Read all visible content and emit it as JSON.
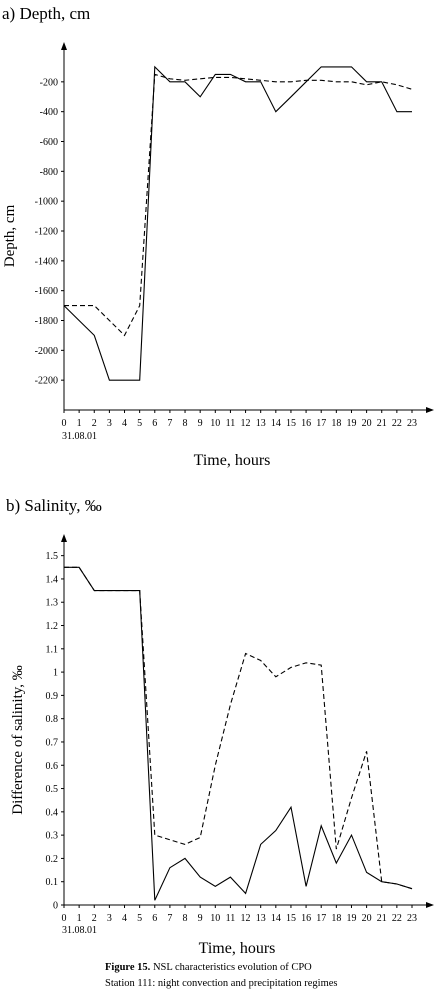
{
  "chart_data": [
    {
      "type": "line",
      "title": "a) Depth, cm",
      "xlabel": "Time, hours",
      "ylabel": "Depth, cm",
      "x": [
        0,
        1,
        2,
        3,
        4,
        5,
        6,
        7,
        8,
        9,
        10,
        11,
        12,
        13,
        14,
        15,
        16,
        17,
        18,
        19,
        20,
        21,
        22,
        23
      ],
      "x_ticks": [
        "0",
        "1",
        "2",
        "3",
        "4",
        "5",
        "6",
        "7",
        "8",
        "9",
        "10",
        "11",
        "12",
        "13",
        "14",
        "15",
        "16",
        "17",
        "18",
        "19",
        "20",
        "21",
        "22",
        "23"
      ],
      "x_sublabel": "31.08.01",
      "ylim": [
        -2400,
        0
      ],
      "y_ticks": [
        -200,
        -400,
        -600,
        -800,
        -1000,
        -1200,
        -1400,
        -1600,
        -1800,
        -2000,
        -2200
      ],
      "series": [
        {
          "style": "solid",
          "values": [
            -1700,
            -1800,
            -1900,
            -2200,
            -2200,
            -2200,
            -100,
            -200,
            -200,
            -300,
            -150,
            -150,
            -200,
            -200,
            -400,
            -300,
            -200,
            -100,
            -100,
            -100,
            -200,
            -200,
            -400,
            -400
          ]
        },
        {
          "style": "dashed",
          "values": [
            -1700,
            -1700,
            -1700,
            -1800,
            -1900,
            -1700,
            -150,
            -180,
            -190,
            -180,
            -170,
            -170,
            -180,
            -190,
            -200,
            -200,
            -190,
            -190,
            -200,
            -200,
            -220,
            -200,
            -220,
            -250
          ]
        }
      ]
    },
    {
      "type": "line",
      "title": "b) Salinity, ‰",
      "xlabel": "Time, hours",
      "ylabel": "Difference of salinity, ‰",
      "x": [
        0,
        1,
        2,
        3,
        4,
        5,
        6,
        7,
        8,
        9,
        10,
        11,
        12,
        13,
        14,
        15,
        16,
        17,
        18,
        19,
        20,
        21,
        22,
        23
      ],
      "x_ticks": [
        "0",
        "1",
        "2",
        "3",
        "4",
        "5",
        "6",
        "7",
        "8",
        "9",
        "10",
        "11",
        "12",
        "13",
        "14",
        "15",
        "16",
        "17",
        "18",
        "19",
        "20",
        "21",
        "22",
        "23"
      ],
      "x_sublabel": "31.08.01",
      "ylim": [
        0,
        1.55
      ],
      "y_ticks": [
        0,
        0.1,
        0.2,
        0.3,
        0.4,
        0.5,
        0.6,
        0.7,
        0.8,
        0.9,
        1,
        1.1,
        1.2,
        1.3,
        1.4,
        1.5
      ],
      "y_tick_labels": [
        "0",
        "0.1",
        "0.2",
        "0.3",
        "0.4",
        "0.5",
        "0.6",
        "0.7",
        "0.8",
        "0.9",
        "1",
        "1.1",
        "1.2",
        "1.3",
        "1.4",
        "1.5"
      ],
      "series": [
        {
          "style": "solid",
          "values": [
            1.45,
            1.45,
            1.35,
            1.35,
            1.35,
            1.35,
            0.02,
            0.16,
            0.2,
            0.12,
            0.08,
            0.12,
            0.05,
            0.26,
            0.32,
            0.42,
            0.08,
            0.34,
            0.18,
            0.3,
            0.14,
            0.1,
            0.09,
            0.07
          ]
        },
        {
          "style": "dashed",
          "values": [
            1.45,
            1.45,
            1.35,
            1.35,
            1.35,
            1.35,
            0.3,
            0.28,
            0.26,
            0.29,
            0.6,
            0.86,
            1.08,
            1.05,
            0.98,
            1.02,
            1.04,
            1.03,
            0.24,
            0.46,
            0.66,
            0.1,
            0.09,
            0.07
          ]
        }
      ]
    }
  ],
  "caption": {
    "label": "Figure 15.",
    "text": " NSL characteristics evolution of CPO",
    "line2": "Station 111: night convection and precipitation regimes"
  }
}
